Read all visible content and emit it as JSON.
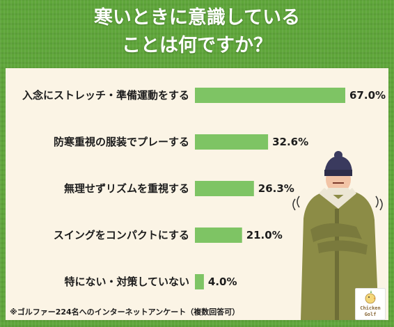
{
  "title_lines": [
    "寒いときに意識している",
    "ことは何ですか？"
  ],
  "footnote": "※ゴルファー224名へのインターネットアンケート（複数回答可）",
  "logo": {
    "line1": "Chicken",
    "line2": "Golf",
    "icon": "chick-golf-logo"
  },
  "colors": {
    "background": "#5fa63a",
    "panel": "#fbf4e5",
    "bar": "#7ec464"
  },
  "chart_data": {
    "type": "bar",
    "orientation": "horizontal",
    "categories": [
      "入念にストレッチ・準備運動をする",
      "防寒重視の服装でプレーする",
      "無理せずリズムを重視する",
      "スイングをコンパクトにする",
      "特にない・対策していない"
    ],
    "values": [
      67.0,
      32.6,
      26.3,
      21.0,
      4.0
    ],
    "value_labels": [
      "67.0%",
      "32.6%",
      "26.3%",
      "21.0%",
      "4.0%"
    ],
    "unit": "%",
    "xlim": [
      0,
      67.0
    ],
    "grid": false,
    "legend": "none"
  }
}
